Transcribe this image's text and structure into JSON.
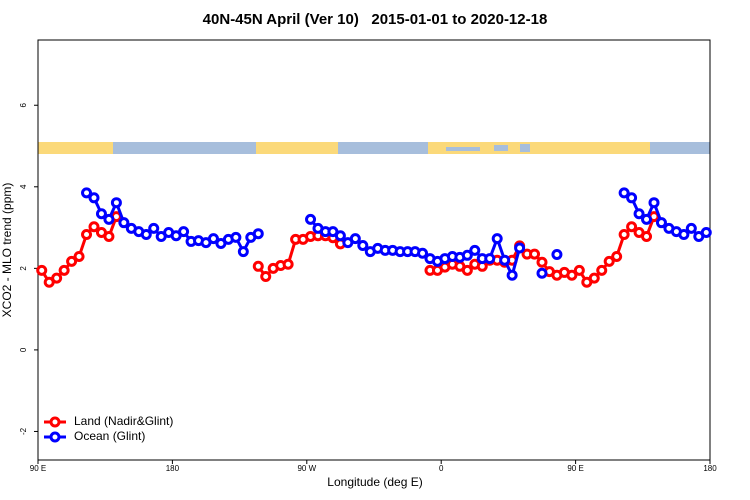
{
  "chart_data": {
    "type": "line",
    "title": "40N-45N April (Ver 10)   2015-01-01 to 2020-12-18",
    "x_label": "Longitude (deg E)",
    "y_label": "XCO2 - MLO trend (ppm)",
    "xlim": [
      90,
      540
    ],
    "ylim": [
      -2.7,
      7.6
    ],
    "xticks": [
      {
        "value": 90,
        "label": "90 E"
      },
      180,
      {
        "value": 270,
        "label": "90 W"
      },
      {
        "value": 360,
        "label": "0"
      },
      {
        "value": 450,
        "label": "90 E"
      },
      {
        "value": 540,
        "label": "180"
      }
    ],
    "yticks": [
      -2,
      0,
      2,
      4,
      6
    ],
    "legend": "bottomleft",
    "x": [
      92.5,
      97.5,
      102.5,
      107.5,
      112.5,
      117.5,
      122.5,
      127.5,
      132.5,
      137.5,
      142.5,
      147.5,
      152.5,
      157.5,
      162.5,
      167.5,
      172.5,
      177.5,
      182.5,
      187.5,
      192.5,
      197.5,
      202.5,
      207.5,
      212.5,
      217.5,
      222.5,
      227.5,
      232.5,
      237.5,
      242.5,
      247.5,
      252.5,
      257.5,
      262.5,
      267.5,
      272.5,
      277.5,
      282.5,
      287.5,
      292.5,
      297.5,
      302.5,
      307.5,
      312.5,
      317.5,
      322.5,
      327.5,
      332.5,
      337.5,
      342.5,
      347.5,
      352.5,
      357.5,
      362.5,
      367.5,
      372.5,
      377.5,
      382.5,
      387.5,
      392.5,
      397.5,
      402.5,
      407.5,
      412.5,
      417.5,
      422.5,
      427.5,
      432.5,
      437.5,
      442.5,
      447.5,
      452.5,
      457.5,
      462.5,
      467.5,
      472.5,
      477.5,
      482.5,
      487.5,
      492.5,
      497.5,
      502.5,
      507.5,
      512.5,
      517.5,
      522.5,
      527.5,
      532.5,
      537.5
    ],
    "series": [
      {
        "name": "Land (Nadir&Glint)",
        "color": "#ff0000",
        "values": [
          1.95,
          1.66,
          1.76,
          1.95,
          2.17,
          2.29,
          2.83,
          3.02,
          2.88,
          2.78,
          3.27,
          null,
          null,
          null,
          null,
          null,
          null,
          null,
          null,
          null,
          null,
          null,
          null,
          null,
          null,
          null,
          null,
          null,
          null,
          2.05,
          1.8,
          2.0,
          2.07,
          2.1,
          2.71,
          2.71,
          2.78,
          2.8,
          2.8,
          2.75,
          2.6,
          null,
          null,
          null,
          null,
          null,
          null,
          null,
          null,
          null,
          null,
          null,
          1.95,
          1.95,
          2.03,
          2.1,
          2.05,
          1.95,
          2.1,
          2.05,
          2.2,
          2.2,
          2.15,
          2.2,
          2.55,
          2.35,
          2.35,
          2.15,
          1.92,
          1.83,
          1.9,
          1.83,
          1.95,
          1.66,
          1.76,
          1.95,
          2.17,
          2.29,
          2.83,
          3.02,
          2.88,
          2.78,
          3.27,
          null,
          null,
          null,
          null,
          null,
          null,
          null
        ]
      },
      {
        "name": "Ocean (Glint)",
        "color": "#0000ff",
        "values": [
          null,
          null,
          null,
          null,
          null,
          null,
          3.85,
          3.73,
          3.34,
          3.2,
          3.61,
          3.12,
          2.98,
          2.9,
          2.83,
          2.98,
          2.78,
          2.88,
          2.8,
          2.9,
          2.66,
          2.68,
          2.63,
          2.73,
          2.61,
          2.71,
          2.76,
          2.41,
          2.76,
          2.85,
          null,
          null,
          null,
          null,
          null,
          null,
          3.2,
          2.98,
          2.9,
          2.9,
          2.8,
          2.63,
          2.73,
          2.56,
          2.41,
          2.49,
          2.44,
          2.44,
          2.41,
          2.41,
          2.41,
          2.37,
          2.24,
          2.17,
          2.24,
          2.29,
          2.27,
          2.32,
          2.44,
          2.24,
          2.24,
          2.73,
          2.2,
          1.83,
          2.5,
          null,
          null,
          1.88,
          null,
          2.34,
          null,
          null,
          null,
          null,
          null,
          null,
          null,
          null,
          3.85,
          3.73,
          3.34,
          3.2,
          3.61,
          3.12,
          2.98,
          2.9,
          2.83,
          2.98,
          2.78,
          2.88
        ]
      }
    ]
  }
}
